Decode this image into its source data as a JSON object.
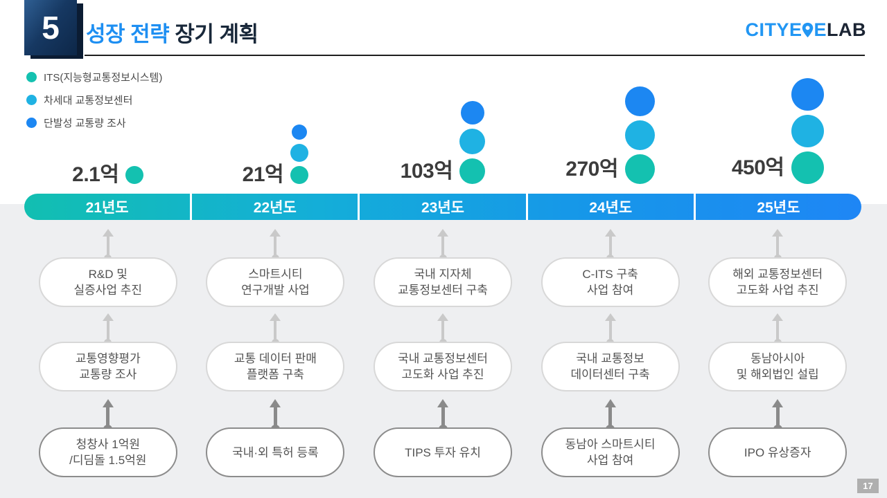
{
  "header": {
    "slide_number": "5",
    "title_highlight": "성장 전략",
    "title_rest": " 장기 계획",
    "logo_prefix": "CITYE",
    "logo_mid": "E",
    "logo_suffix": "LAB"
  },
  "legend": [
    {
      "label": "ITS(지능형교통정보시스템)",
      "series_key": "teal",
      "color": "#14C1B0"
    },
    {
      "label": "차세대 교통정보센터",
      "series_key": "cyan",
      "color": "#1FB2E3"
    },
    {
      "label": "단발성 교통량 조사",
      "series_key": "blue",
      "color": "#1C87F2"
    }
  ],
  "colors": {
    "teal": "#14C1B0",
    "cyan": "#1FB2E3",
    "blue": "#1C87F2"
  },
  "chart_data": {
    "type": "bubble",
    "title": "성장 전략 장기 계획",
    "categories": [
      "21년도",
      "22년도",
      "23년도",
      "24년도",
      "25년도"
    ],
    "revenue_unit": "억 (100M KRW)",
    "revenue_values": [
      2.1,
      21,
      103,
      270,
      450
    ],
    "revenue_labels": [
      "2.1억",
      "21억",
      "103억",
      "270억",
      "450억"
    ],
    "series": [
      {
        "name": "ITS(지능형교통정보시스템)",
        "color": "#14C1B0",
        "active_years": [
          "21년도",
          "22년도",
          "23년도",
          "24년도",
          "25년도"
        ]
      },
      {
        "name": "차세대 교통정보센터",
        "color": "#1FB2E3",
        "active_years": [
          "22년도",
          "23년도",
          "24년도",
          "25년도"
        ]
      },
      {
        "name": "단발성 교통량 조사",
        "color": "#1C87F2",
        "active_years": [
          "22년도",
          "23년도",
          "24년도",
          "25년도"
        ]
      }
    ],
    "legend_position": "top-left",
    "grid": false
  },
  "columns": [
    {
      "year": "21년도",
      "amount": "2.1억",
      "bubbles": [
        {
          "series_key": "teal",
          "d": 26
        }
      ],
      "milestones": [
        [
          "R&D 및",
          "실증사업 추진"
        ],
        [
          "교통영향평가",
          "교통량 조사"
        ],
        [
          "청창사 1억원",
          "/디딤돌 1.5억원"
        ]
      ]
    },
    {
      "year": "22년도",
      "amount": "21억",
      "bubbles": [
        {
          "series_key": "blue",
          "d": 22
        },
        {
          "series_key": "cyan",
          "d": 26
        },
        {
          "series_key": "teal",
          "d": 26
        }
      ],
      "milestones": [
        [
          "스마트시티",
          "연구개발 사업"
        ],
        [
          "교통 데이터 판매",
          "플랫폼 구축"
        ],
        [
          "국내·외 특허 등록"
        ]
      ]
    },
    {
      "year": "23년도",
      "amount": "103억",
      "bubbles": [
        {
          "series_key": "blue",
          "d": 34
        },
        {
          "series_key": "cyan",
          "d": 37
        },
        {
          "series_key": "teal",
          "d": 37
        }
      ],
      "milestones": [
        [
          "국내 지자체",
          "교통정보센터 구축"
        ],
        [
          "국내 교통정보센터",
          "고도화 사업 추진"
        ],
        [
          "TIPS 투자 유치"
        ]
      ]
    },
    {
      "year": "24년도",
      "amount": "270억",
      "bubbles": [
        {
          "series_key": "blue",
          "d": 43
        },
        {
          "series_key": "cyan",
          "d": 43
        },
        {
          "series_key": "teal",
          "d": 43
        }
      ],
      "milestones": [
        [
          "C-ITS 구축",
          "사업 참여"
        ],
        [
          "국내 교통정보",
          "데이터센터 구축"
        ],
        [
          "동남아 스마트시티",
          "사업 참여"
        ]
      ]
    },
    {
      "year": "25년도",
      "amount": "450억",
      "bubbles": [
        {
          "series_key": "blue",
          "d": 47
        },
        {
          "series_key": "cyan",
          "d": 47
        },
        {
          "series_key": "teal",
          "d": 47
        }
      ],
      "milestones": [
        [
          "해외 교통정보센터",
          "고도화 사업 추진"
        ],
        [
          "동남아시아",
          "및 해외법인 설립"
        ],
        [
          "IPO 유상증자"
        ]
      ]
    }
  ],
  "page_number": "17"
}
